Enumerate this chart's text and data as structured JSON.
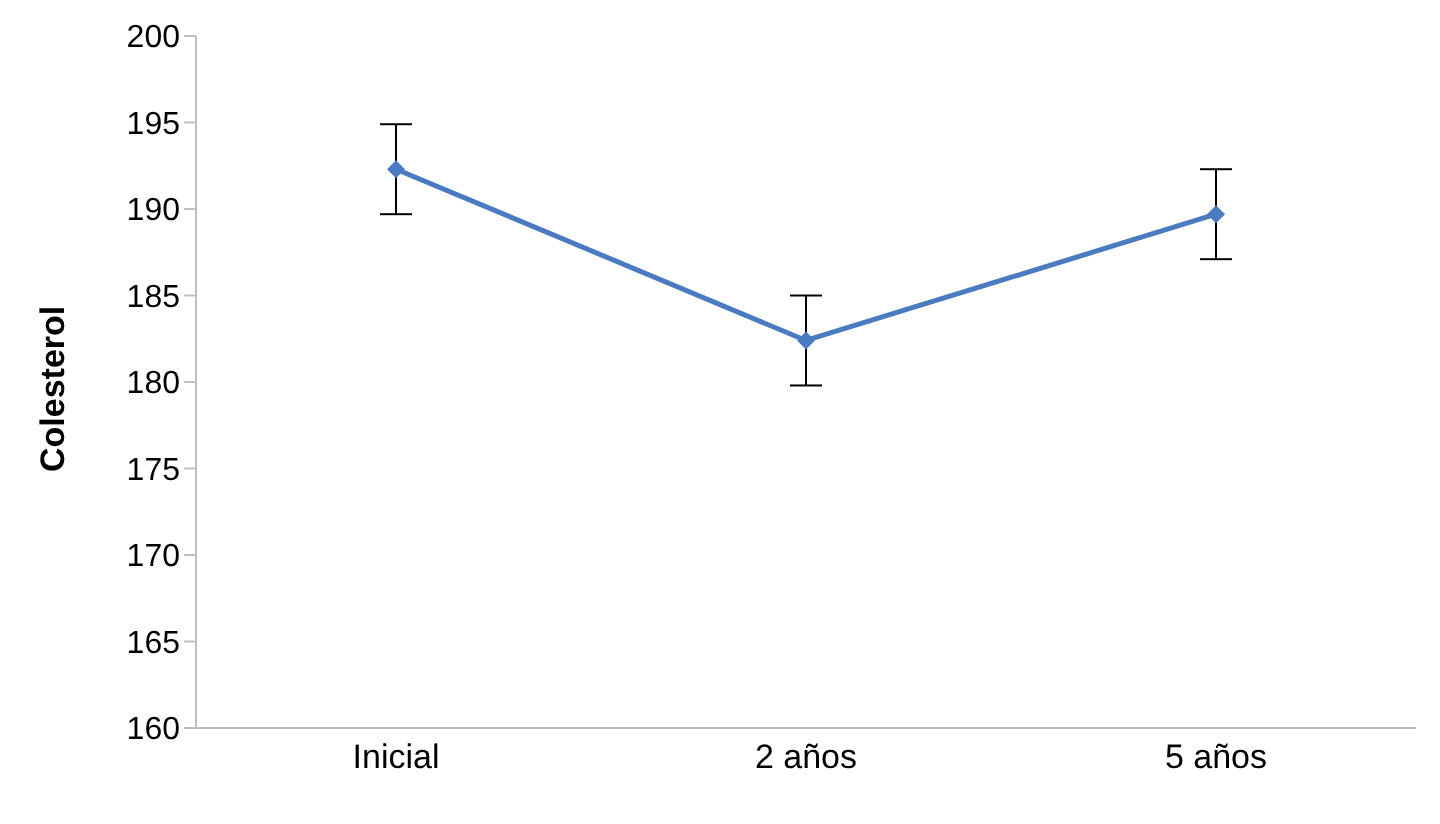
{
  "chart_data": {
    "type": "line",
    "ylabel": "Colesterol",
    "categories": [
      "Inicial",
      "2 años",
      "5 años"
    ],
    "series": [
      {
        "color": "#4a7bc0",
        "values": [
          192.3,
          182.4,
          189.7
        ],
        "errors": [
          2.6,
          2.6,
          2.6
        ]
      }
    ],
    "ylim": [
      160,
      200
    ],
    "yticks": [
      160,
      165,
      170,
      175,
      180,
      185,
      190,
      195,
      200
    ],
    "grid": false,
    "legend": false,
    "marker": "diamond",
    "line_style": "solid"
  }
}
